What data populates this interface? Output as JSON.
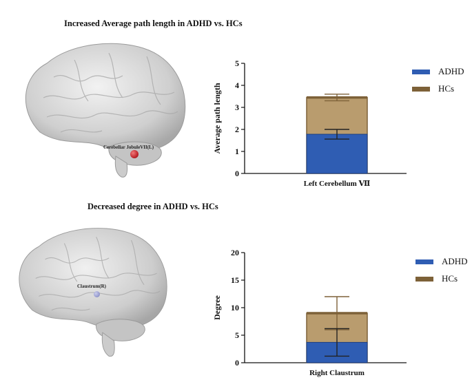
{
  "colors": {
    "adhd": "#2f5db3",
    "hcs_fill": "#b99c6e",
    "hcs_edge": "#7d6138",
    "axis": "#111111"
  },
  "panels": [
    {
      "title": "Increased Average path length in ADHD vs. HCs",
      "brain": {
        "node_label": "Cerebellar JobuleVII(L)",
        "node_color": "#c0282d"
      },
      "legend": [
        {
          "label": "ADHD",
          "color": "#2f5db3"
        },
        {
          "label": "HCs",
          "color": "#7d6138"
        }
      ]
    },
    {
      "title": "Decreased degree in ADHD vs. HCs",
      "brain": {
        "node_label": "Claustrum(R)",
        "node_color": "#8e93cf"
      },
      "legend": [
        {
          "label": "ADHD",
          "color": "#2f5db3"
        },
        {
          "label": "HCs",
          "color": "#7d6138"
        }
      ]
    }
  ],
  "chart_data": [
    {
      "type": "bar",
      "categories": [
        "Left Cerebellum Ⅶ"
      ],
      "ylabel": "Average path length",
      "ylim": [
        0,
        5
      ],
      "yticks": [
        "0",
        "1",
        "2",
        "3",
        "4",
        "5"
      ],
      "stacked_overlay": true,
      "grid": false,
      "series": [
        {
          "name": "HCs",
          "values": [
            3.45
          ],
          "error": [
            0.15
          ]
        },
        {
          "name": "ADHD",
          "values": [
            1.78
          ],
          "error": [
            0.22
          ]
        }
      ]
    },
    {
      "type": "bar",
      "categories": [
        "Right Claustrum"
      ],
      "ylabel": "Degree",
      "ylim": [
        0,
        20
      ],
      "yticks": [
        "0",
        "5",
        "10",
        "15",
        "20"
      ],
      "stacked_overlay": true,
      "grid": false,
      "series": [
        {
          "name": "HCs",
          "values": [
            9.0
          ],
          "error": [
            3.0
          ]
        },
        {
          "name": "ADHD",
          "values": [
            3.7
          ],
          "error": [
            2.5
          ]
        }
      ]
    }
  ]
}
